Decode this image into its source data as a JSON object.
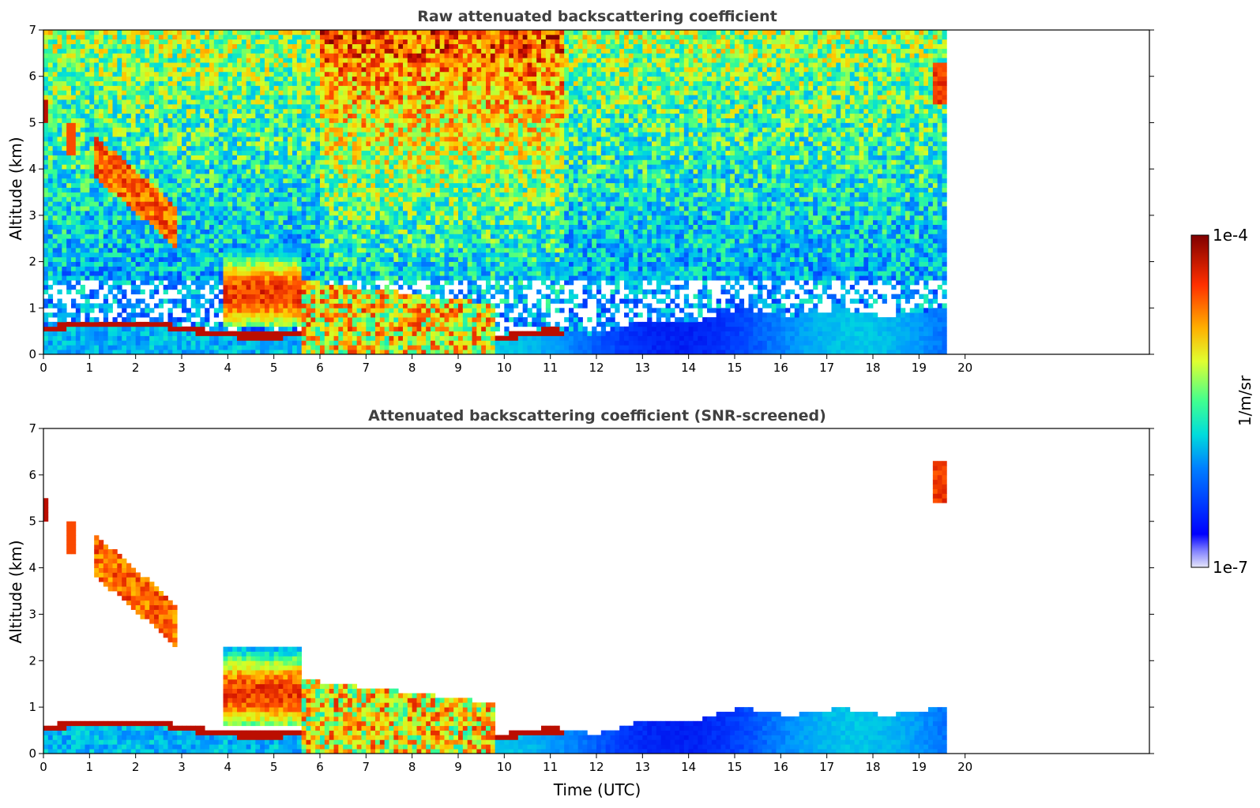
{
  "figure": {
    "x_label": "Time (UTC)"
  },
  "colorbar": {
    "max_label": "1e-4",
    "min_label": "1e-7",
    "unit_label": "1/m/sr",
    "colormap": "jet",
    "scale": "log",
    "range": [
      1e-07,
      0.0001
    ]
  },
  "chart_data": [
    {
      "type": "heatmap",
      "title": "Raw attenuated backscattering coefficient",
      "xlabel": "",
      "ylabel": "Altitude (km)",
      "xlim": [
        0,
        24
      ],
      "ylim": [
        0,
        7
      ],
      "x_ticks": [
        "0",
        "1",
        "2",
        "3",
        "4",
        "5",
        "6",
        "7",
        "8",
        "9",
        "10",
        "11",
        "12",
        "13",
        "14",
        "15",
        "16",
        "17",
        "18",
        "19",
        "20"
      ],
      "y_ticks": [
        "0",
        "1",
        "2",
        "3",
        "4",
        "5",
        "6",
        "7"
      ],
      "data_end_hour": 19.6,
      "screened": false,
      "features": [
        {
          "name": "boundary layer aerosol",
          "t": [
            9.8,
            19.6
          ],
          "top_km": [
            0.5,
            0.98
          ],
          "level": "low"
        },
        {
          "name": "elevated cloud",
          "t": [
            3.9,
            5.6
          ],
          "alt_km": [
            0.6,
            2.3
          ],
          "level": "high"
        },
        {
          "name": "cirrus descent",
          "t": [
            1.2,
            2.9
          ],
          "alt_km": [
            2.5,
            4.6
          ],
          "level": "high"
        },
        {
          "name": "low cloud",
          "t": [
            0,
            11.3
          ],
          "alt_km": [
            0.1,
            1.2
          ],
          "level": "high"
        },
        {
          "name": "upper cloud",
          "t": [
            19.2,
            19.6
          ],
          "alt_km": [
            5.4,
            6.3
          ],
          "level": "high"
        }
      ]
    },
    {
      "type": "heatmap",
      "title": "Attenuated backscattering coefficient (SNR-screened)",
      "xlabel": "Time (UTC)",
      "ylabel": "Altitude (km)",
      "xlim": [
        0,
        24
      ],
      "ylim": [
        0,
        7
      ],
      "x_ticks": [
        "0",
        "1",
        "2",
        "3",
        "4",
        "5",
        "6",
        "7",
        "8",
        "9",
        "10",
        "11",
        "12",
        "13",
        "14",
        "15",
        "16",
        "17",
        "18",
        "19",
        "20"
      ],
      "y_ticks": [
        "0",
        "1",
        "2",
        "3",
        "4",
        "5",
        "6",
        "7"
      ],
      "data_end_hour": 19.6,
      "screened": true
    }
  ]
}
